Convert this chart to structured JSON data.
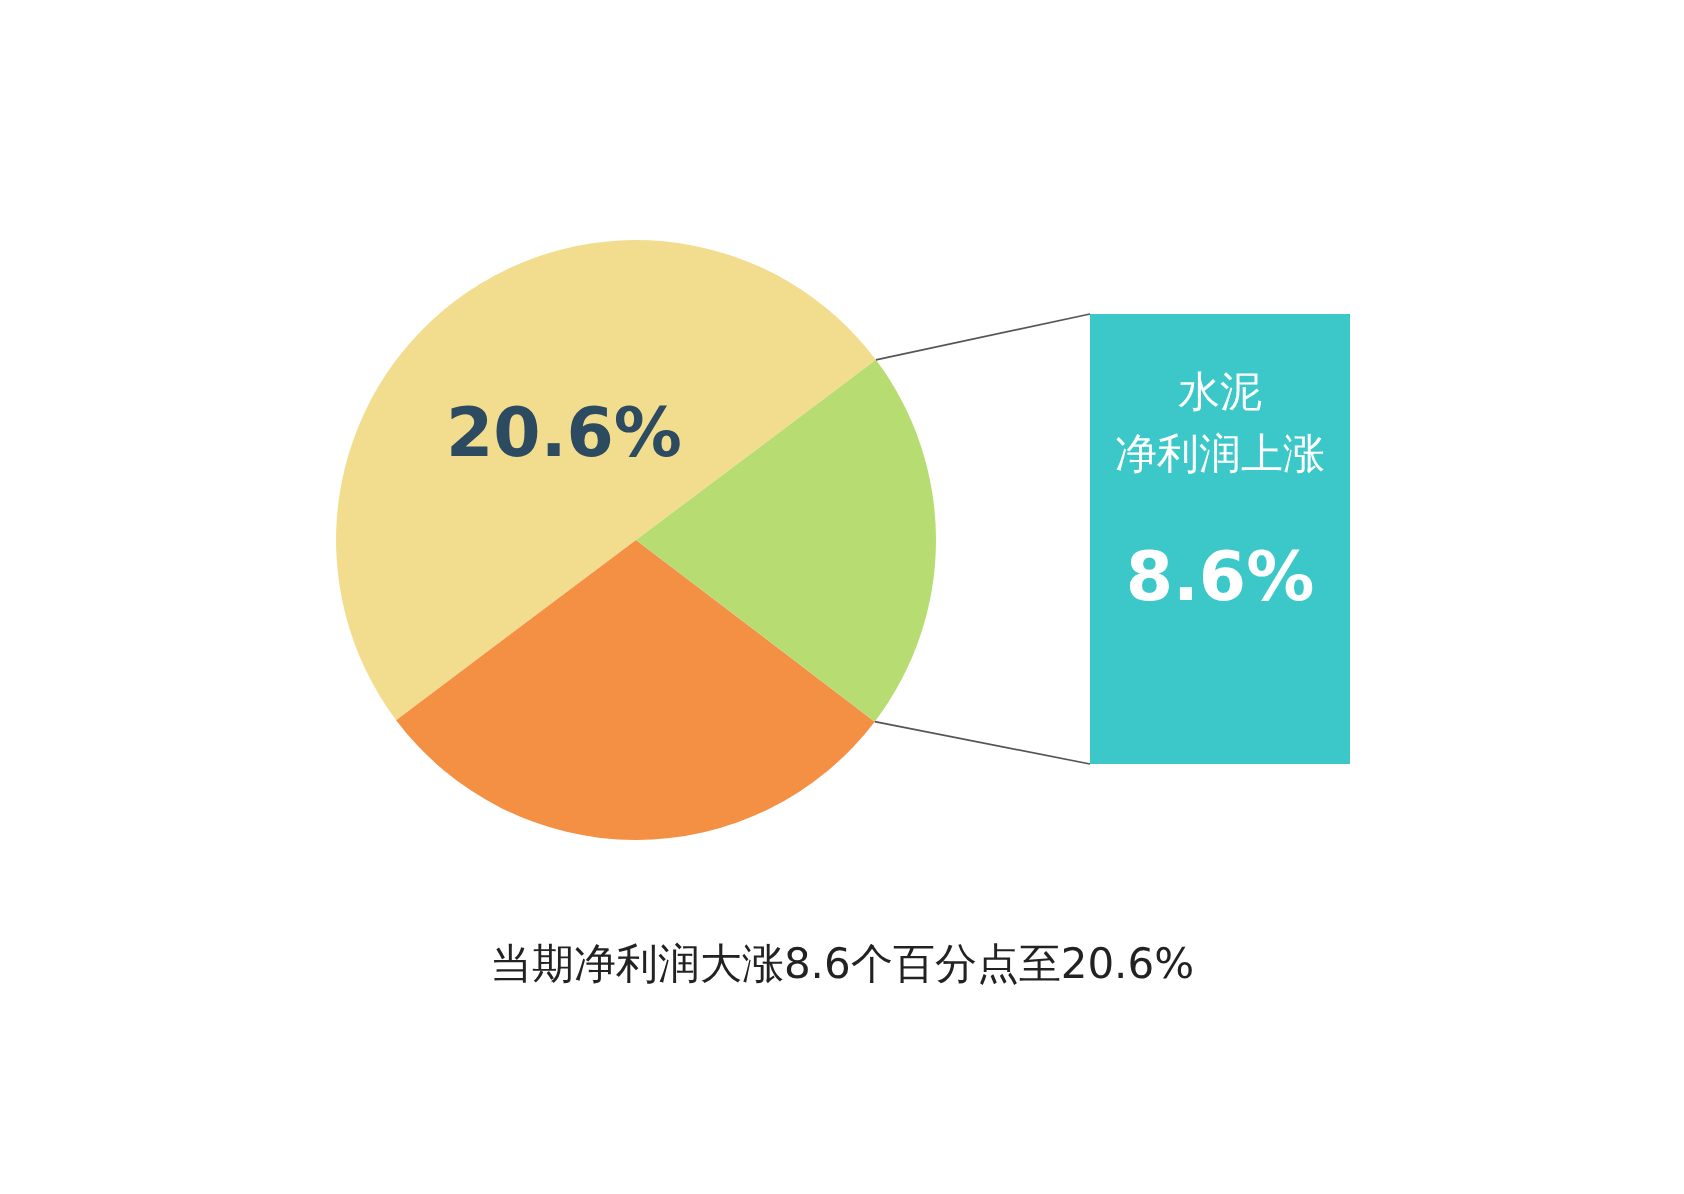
{
  "chart_data": {
    "type": "pie",
    "categories": [
      null,
      null,
      null
    ],
    "values": [
      50.0,
      29.4,
      20.6
    ],
    "colors": [
      "#f2dd8f",
      "#f39043",
      "#b7dc72"
    ],
    "annotations": [
      "20.6%",
      "水泥",
      "净利润上涨",
      "8.6%",
      "当期净利润大涨8.6个百分点至20.6%"
    ]
  }
}
